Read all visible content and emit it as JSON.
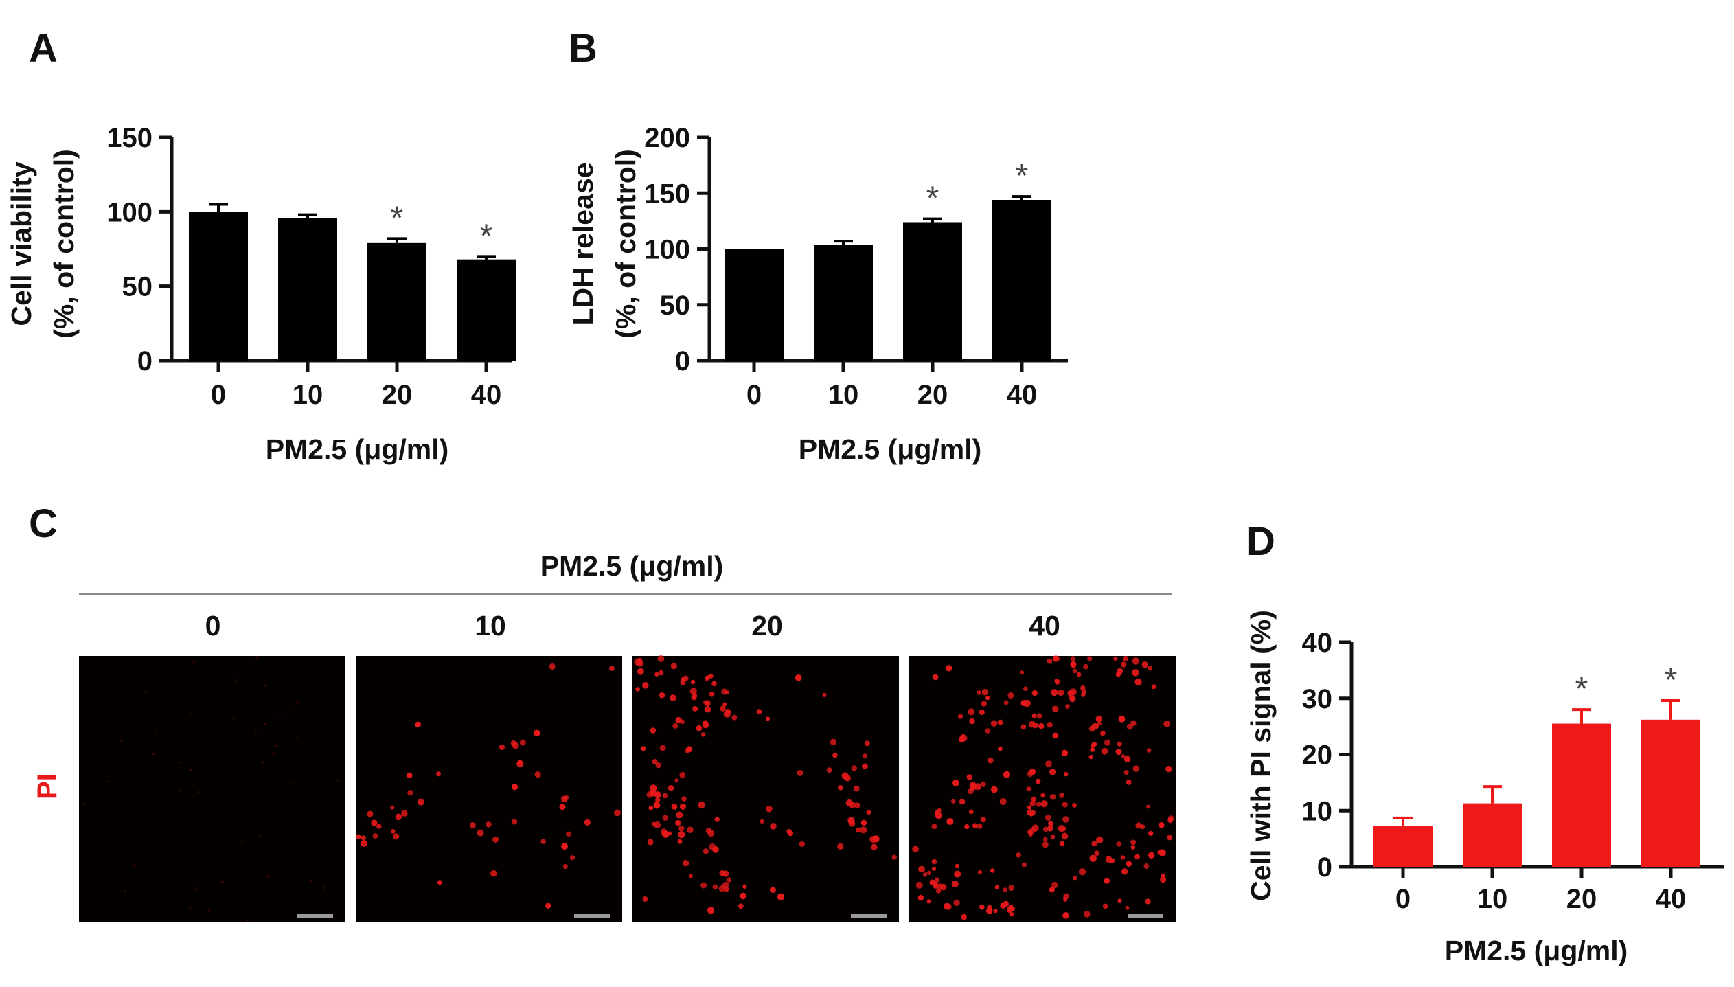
{
  "panels": {
    "a": "A",
    "b": "B",
    "c": "C",
    "d": "D"
  },
  "colors": {
    "black_bar": "#000000",
    "red_bar": "#ee1a1a",
    "cell": "#e8191b",
    "image_bg": "#050000",
    "scale_bar": "#9a9a9a"
  },
  "panel_c": {
    "header": "PM2.5 (μg/ml)",
    "stain_label": "PI",
    "doses": [
      "0",
      "10",
      "20",
      "40"
    ],
    "cell_density": [
      0,
      0.2,
      0.6,
      1.0
    ]
  },
  "chart_data": [
    {
      "id": "A",
      "type": "bar",
      "categories": [
        "0",
        "10",
        "20",
        "40"
      ],
      "values": [
        100,
        96,
        79,
        68
      ],
      "errors": [
        5,
        2,
        3,
        2
      ],
      "significant": [
        false,
        false,
        true,
        true
      ],
      "marker": "*",
      "ylabel_lines": [
        "Cell viability",
        "(%, of control)"
      ],
      "xlabel": "PM2.5 (μg/ml)",
      "ylim": [
        0,
        150
      ],
      "yticks": [
        0,
        50,
        100,
        150
      ],
      "bar_color": "#000000"
    },
    {
      "id": "B",
      "type": "bar",
      "categories": [
        "0",
        "10",
        "20",
        "40"
      ],
      "values": [
        100,
        104,
        124,
        144
      ],
      "errors": [
        0,
        3,
        3,
        3
      ],
      "significant": [
        false,
        false,
        true,
        true
      ],
      "marker": "*",
      "ylabel_lines": [
        "LDH release",
        "(%, of control)"
      ],
      "xlabel": "PM2.5 (μg/ml)",
      "ylim": [
        0,
        200
      ],
      "yticks": [
        0,
        50,
        100,
        150,
        200
      ],
      "bar_color": "#000000"
    },
    {
      "id": "D",
      "type": "bar",
      "categories": [
        "0",
        "10",
        "20",
        "40"
      ],
      "values": [
        7.3,
        11.3,
        25.5,
        26.2
      ],
      "errors": [
        1.4,
        3.0,
        2.5,
        3.4
      ],
      "significant": [
        false,
        false,
        true,
        true
      ],
      "marker": "*",
      "ylabel_lines": [
        "Cell with PI signal (%)"
      ],
      "xlabel": "PM2.5 (μg/ml)",
      "ylim": [
        0,
        40
      ],
      "yticks": [
        0,
        10,
        20,
        30,
        40
      ],
      "bar_color": "#ee1a1a"
    }
  ]
}
